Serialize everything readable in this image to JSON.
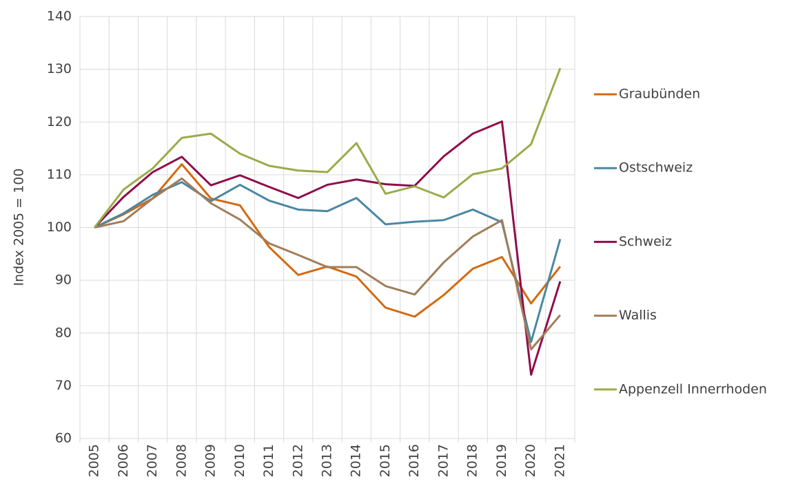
{
  "chart_data": {
    "type": "line",
    "y_label": "Index 2005 = 100",
    "categories": [
      "2005",
      "2006",
      "2007",
      "2008",
      "2009",
      "2010",
      "2011",
      "2012",
      "2013",
      "2014",
      "2015",
      "2016",
      "2017",
      "2018",
      "2019",
      "2020",
      "2021"
    ],
    "series": [
      {
        "name": "Graubünden",
        "color": "#d4690f",
        "values": [
          100,
          102.5,
          105.5,
          112,
          105.5,
          104.2,
          96.3,
          91,
          92.6,
          90.7,
          84.8,
          83.1,
          87.2,
          92.2,
          94.4,
          85.6,
          92.6
        ]
      },
      {
        "name": "Ostschweiz",
        "color": "#4a87a3",
        "values": [
          100,
          102.7,
          106.2,
          108.6,
          105,
          108.1,
          105.1,
          103.4,
          103.1,
          105.6,
          100.6,
          101.1,
          101.4,
          103.4,
          101,
          78.3,
          97.8
        ]
      },
      {
        "name": "Schweiz",
        "color": "#900c4a",
        "values": [
          100,
          105.8,
          110.5,
          113.4,
          108,
          109.9,
          107.7,
          105.6,
          108.1,
          109.1,
          108.2,
          107.9,
          113.5,
          117.8,
          120.1,
          72.1,
          89.8
        ]
      },
      {
        "name": "Wallis",
        "color": "#a07d5a",
        "values": [
          100,
          101.2,
          105.5,
          109.3,
          104.6,
          101.5,
          97,
          94.8,
          92.5,
          92.5,
          88.9,
          87.3,
          93.4,
          98.3,
          101.4,
          76.9,
          83.4
        ]
      },
      {
        "name": "Appenzell Innerrhoden",
        "color": "#9aab4a",
        "values": [
          100,
          107.2,
          111.2,
          117,
          117.8,
          114,
          111.7,
          110.8,
          110.5,
          116,
          106.4,
          107.8,
          105.7,
          110.1,
          111.2,
          115.8,
          130.2
        ]
      }
    ],
    "ylim": [
      60,
      140
    ],
    "yticks": [
      60,
      70,
      80,
      90,
      100,
      110,
      120,
      130,
      140
    ],
    "grid": true,
    "legend": "right"
  }
}
